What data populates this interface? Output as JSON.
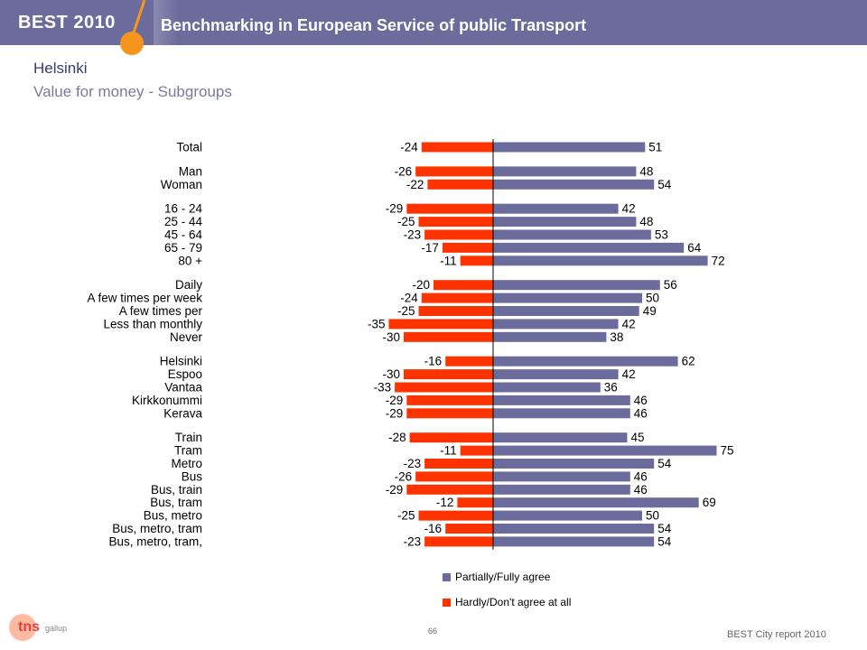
{
  "header": {
    "brand": "BEST 2010",
    "title": "Benchmarking in European Service of public Transport"
  },
  "page": {
    "title": "Helsinki",
    "subtitle": "Value for money - Subgroups"
  },
  "colors": {
    "banner": "#6b6b9c",
    "positive": "#6b6b9c",
    "negative": "#ff3300",
    "accent_orange": "#f7941d"
  },
  "chart_data": {
    "type": "bar",
    "orientation": "horizontal-diverging",
    "categories": [
      "Total",
      "Man",
      "Woman",
      "16 - 24",
      "25 - 44",
      "45 - 64",
      "65 - 79",
      "80 +",
      "Daily",
      "A few times per week",
      "A few times per",
      "Less than monthly",
      "Never",
      "Helsinki",
      "Espoo",
      "Vantaa",
      "Kirkkonummi",
      "Kerava",
      "Train",
      "Tram",
      "Metro",
      "Bus",
      "Bus, train",
      "Bus, tram",
      "Bus, metro",
      "Bus, metro, tram",
      "Bus, metro, tram,"
    ],
    "groups": [
      [
        0
      ],
      [
        1,
        2
      ],
      [
        3,
        4,
        5,
        6,
        7
      ],
      [
        8,
        9,
        10,
        11,
        12
      ],
      [
        13,
        14,
        15,
        16,
        17
      ],
      [
        18,
        19,
        20,
        21,
        22,
        23,
        24,
        25,
        26
      ]
    ],
    "series": [
      {
        "name": "Partially/Fully agree",
        "color": "#6b6b9c",
        "values": [
          51,
          48,
          54,
          42,
          48,
          53,
          64,
          72,
          56,
          50,
          49,
          42,
          38,
          62,
          42,
          36,
          46,
          46,
          45,
          75,
          54,
          46,
          46,
          69,
          50,
          54,
          54
        ]
      },
      {
        "name": "Hardly/Don't agree at all",
        "color": "#ff3300",
        "values": [
          -24,
          -26,
          -22,
          -29,
          -25,
          -23,
          -17,
          -11,
          -20,
          -24,
          -25,
          -35,
          -30,
          -16,
          -30,
          -33,
          -29,
          -29,
          -28,
          -11,
          -23,
          -26,
          -29,
          -12,
          -25,
          -16,
          -23
        ]
      }
    ],
    "xlim": [
      -40,
      80
    ],
    "legend_position": "bottom"
  },
  "footer": {
    "page_number": "66",
    "report": "BEST City report 2010",
    "logo_main": "tns",
    "logo_sub": "gallup"
  }
}
